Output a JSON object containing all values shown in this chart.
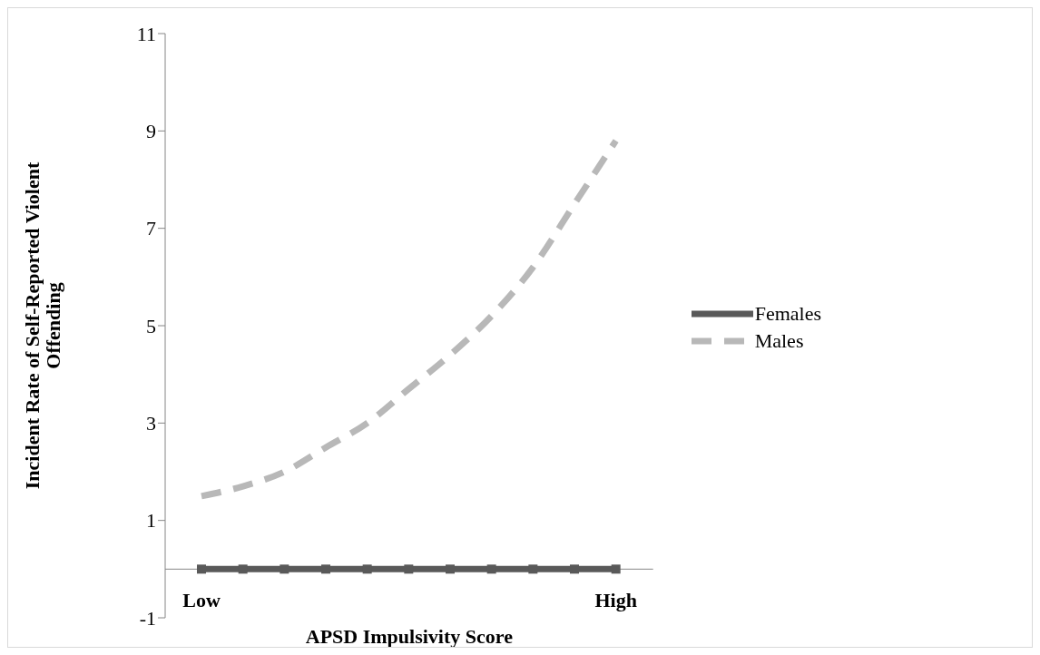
{
  "chart_data": {
    "type": "line",
    "xlabel": "APSD Impulsivity Score",
    "ylabel": "Incident Rate of Self-Reported Violent Offending",
    "categories": [
      "Low",
      null,
      null,
      null,
      null,
      null,
      null,
      null,
      null,
      null,
      "High"
    ],
    "ylim": [
      -1,
      11
    ],
    "yticks": [
      -1,
      1,
      3,
      5,
      7,
      9,
      11
    ],
    "grid": false,
    "legend": "right",
    "series": [
      {
        "name": "Females",
        "color": "#595959",
        "line_style": "solid",
        "marker": "square",
        "values": [
          0,
          0,
          0,
          0,
          0,
          0,
          0,
          0,
          0,
          0,
          0
        ]
      },
      {
        "name": "Males",
        "color": "#b8b8b8",
        "line_style": "dashed",
        "marker": "none",
        "values": [
          1.5,
          1.7,
          2.0,
          2.5,
          3.0,
          3.7,
          4.4,
          5.2,
          6.2,
          7.5,
          8.8
        ]
      }
    ]
  }
}
